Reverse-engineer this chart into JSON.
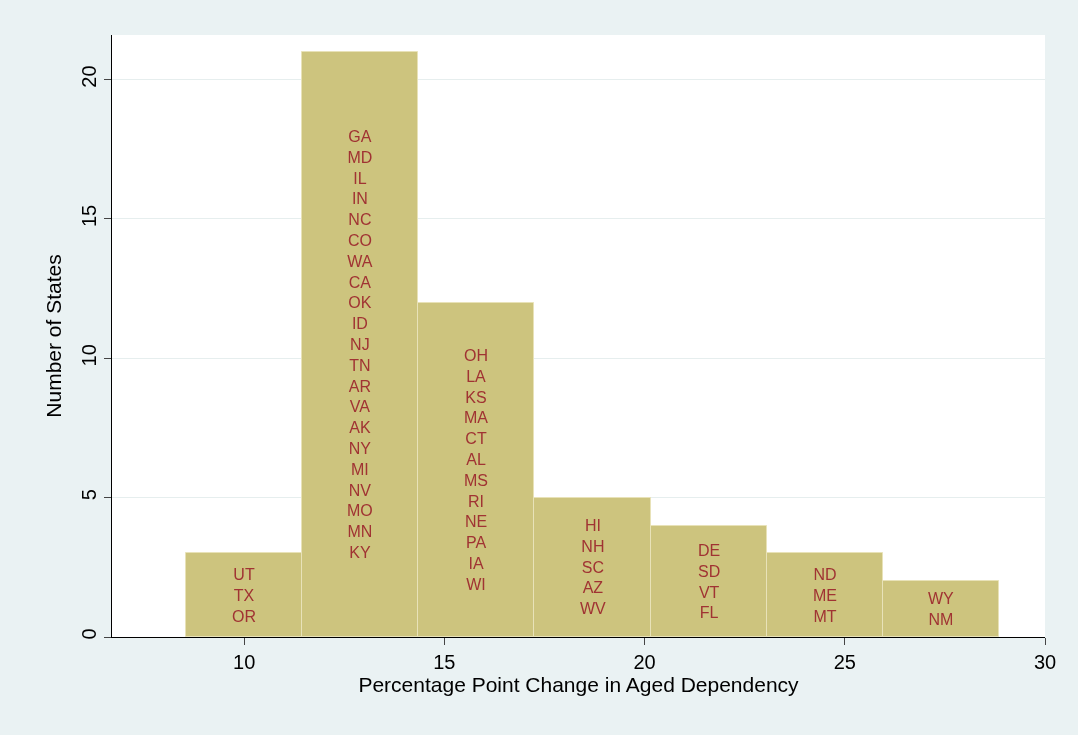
{
  "chart_data": {
    "type": "histogram",
    "xlabel": "Percentage Point Change in Aged Dependency",
    "ylabel": "Number of States",
    "bins": [
      8.55,
      11.45,
      14.35,
      17.25,
      20.15,
      23.05,
      25.95,
      28.85
    ],
    "values": [
      3,
      21,
      12,
      5,
      4,
      3,
      2
    ],
    "color": "#cdc47e",
    "xlim": [
      6.7,
      30
    ],
    "xticks": [
      10,
      15,
      20,
      25,
      30
    ],
    "ylim": [
      0,
      21.6
    ],
    "yticks": [
      0,
      5,
      10,
      15,
      20
    ],
    "grid": "y",
    "annotations": [
      "UT\nTX\nOR",
      "GA\nMD\nIL\nIN\nNC\nCO\nWA\nCA\nOK\nID\nNJ\nTN\nAR\nVA\nAK\nNY\nMI\nNV\nMO\nMN\nKY",
      "OH\nLA\nKS\nMA\nCT\nAL\nMS\nRI\nNE\nPA\nIA\nWI",
      "HI\nNH\nSC\nAZ\nWV",
      "DE\nSD\nVT\nFL",
      "ND\nME\nMT",
      "WY\nNM"
    ]
  }
}
